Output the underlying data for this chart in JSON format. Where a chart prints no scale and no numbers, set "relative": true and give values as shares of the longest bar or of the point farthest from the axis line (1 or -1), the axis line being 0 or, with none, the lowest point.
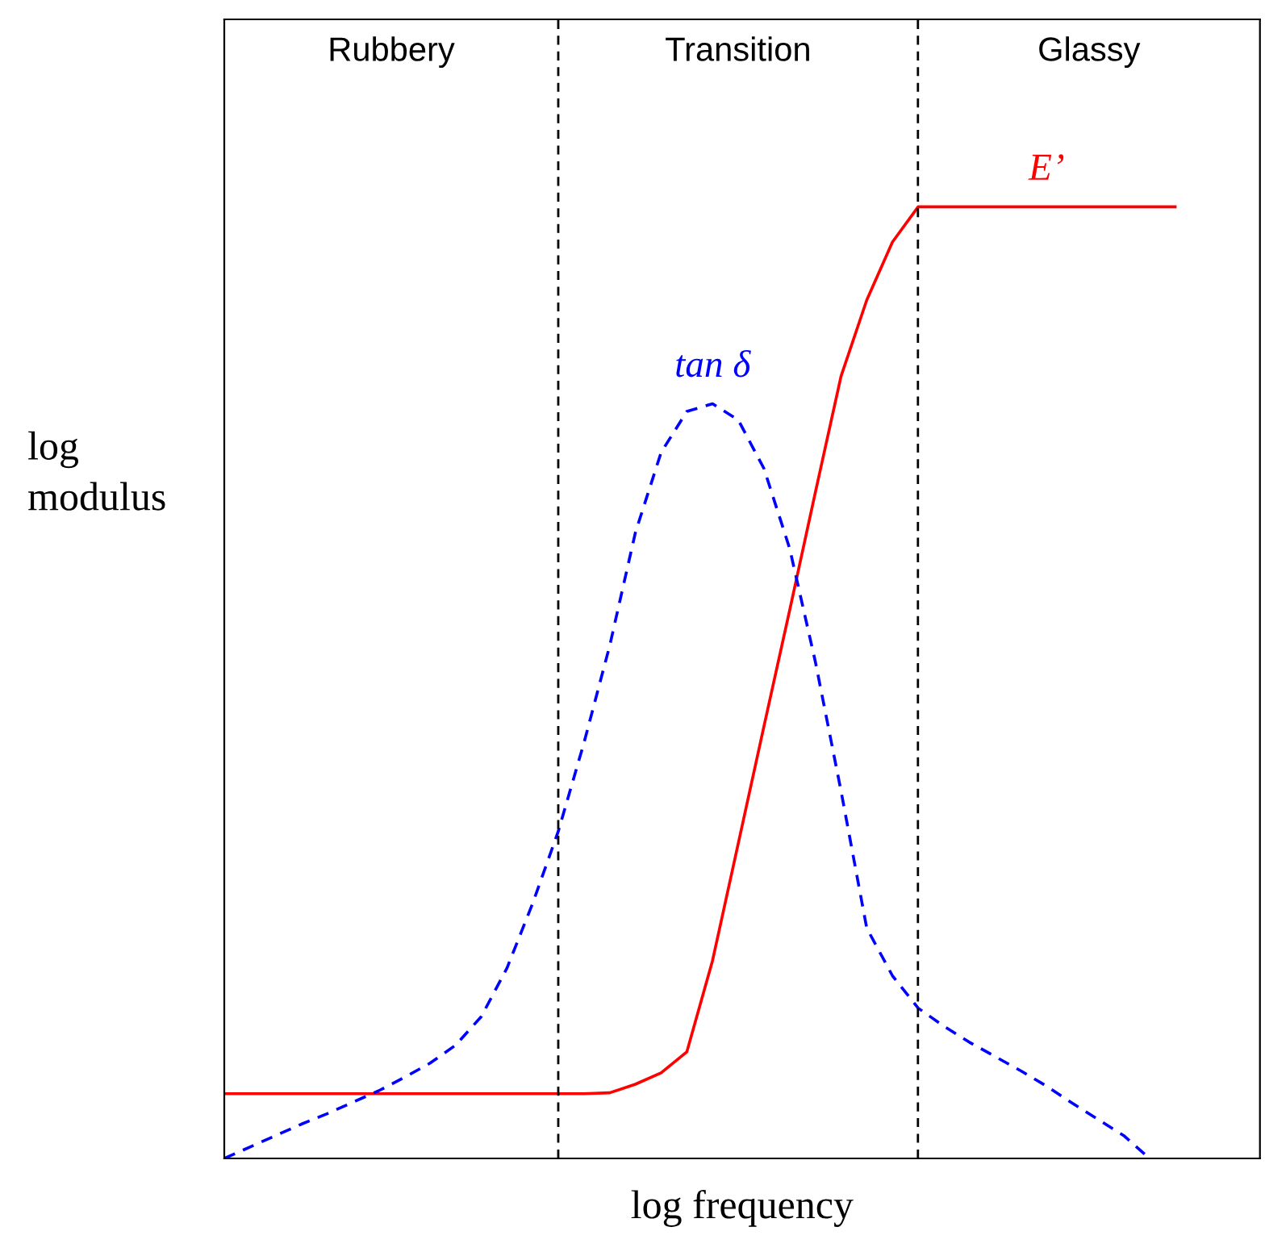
{
  "chart_data": {
    "type": "line",
    "relative": true,
    "xlabel": "log frequency",
    "ylabel": "log\nmodulus",
    "categories": [
      null,
      null,
      null,
      null,
      null,
      null,
      null,
      null,
      null,
      null,
      null,
      null,
      null,
      null,
      null,
      null,
      null,
      null,
      null,
      null,
      null,
      null,
      null,
      null,
      null,
      null,
      null,
      null,
      null,
      null,
      null,
      null,
      null,
      null,
      null,
      null,
      null,
      null,
      null,
      null,
      null
    ],
    "series": [
      {
        "name": "E’",
        "color": "#ff0000",
        "line_style": "solid",
        "values": [
          0.068,
          0.068,
          0.068,
          0.068,
          0.068,
          0.068,
          0.068,
          0.068,
          0.068,
          0.068,
          0.068,
          0.068,
          0.068,
          0.068,
          0.068,
          0.069,
          0.078,
          0.09,
          0.112,
          0.208,
          0.331,
          0.454,
          0.576,
          0.7,
          0.822,
          0.902,
          0.963,
          1.0,
          1.0,
          1.0,
          1.0,
          1.0,
          1.0,
          1.0,
          1.0,
          1.0,
          1.0,
          1.0,
          null,
          null,
          null
        ]
      },
      {
        "name": "tan δ",
        "color": "#0000ff",
        "line_style": "dashed",
        "values": [
          0,
          0.012,
          0.024,
          0.036,
          0.047,
          0.059,
          0.071,
          0.085,
          0.1,
          0.119,
          0.149,
          0.2,
          0.268,
          0.344,
          0.437,
          0.539,
          0.658,
          0.742,
          0.785,
          0.793,
          0.776,
          0.725,
          0.641,
          0.522,
          0.386,
          0.242,
          0.192,
          0.158,
          0.139,
          0.122,
          0.107,
          0.092,
          0.076,
          0.058,
          0.041,
          0.024,
          0,
          null,
          null,
          null,
          null
        ]
      }
    ],
    "annotations": [
      "Rubbery",
      "Transition",
      "Glassy"
    ],
    "legend": false,
    "marker": "none"
  }
}
